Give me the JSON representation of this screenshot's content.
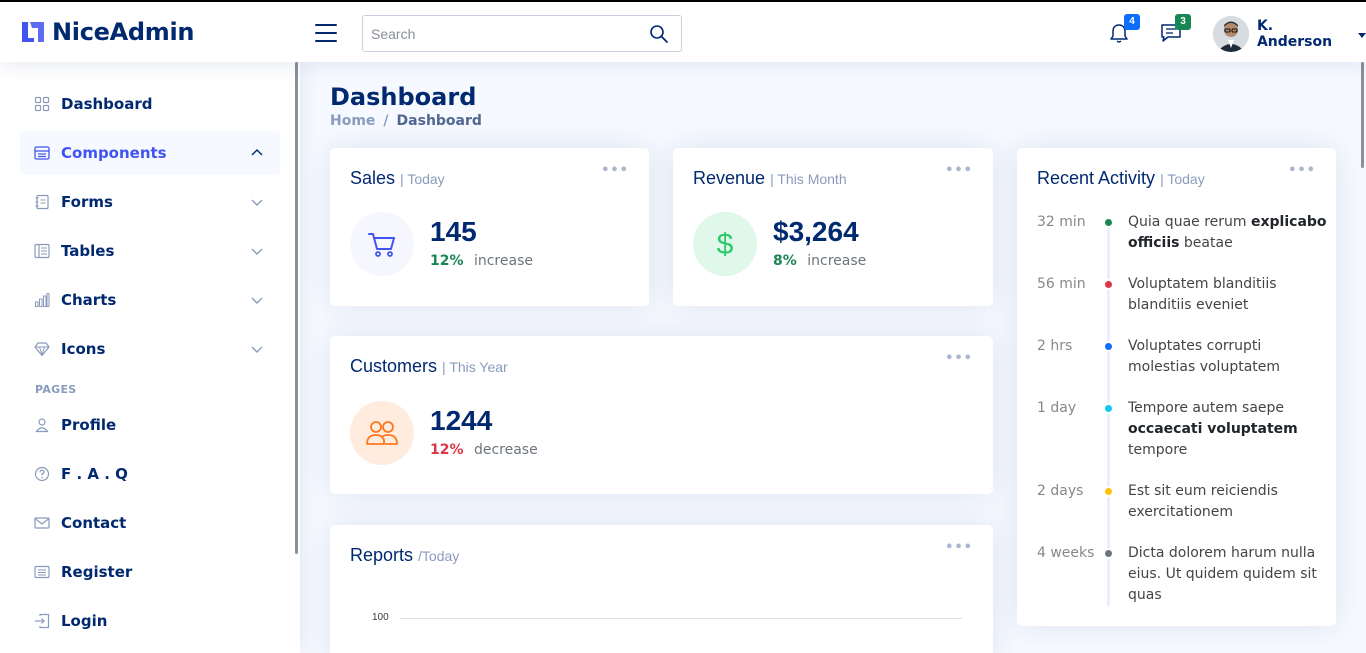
{
  "header": {
    "brand": "NiceAdmin",
    "search_placeholder": "Search",
    "notifications_count": "4",
    "messages_count": "3",
    "user_name": "K. Anderson"
  },
  "sidebar": {
    "items": [
      {
        "label": "Dashboard"
      },
      {
        "label": "Components"
      },
      {
        "label": "Forms"
      },
      {
        "label": "Tables"
      },
      {
        "label": "Charts"
      },
      {
        "label": "Icons"
      }
    ],
    "pages_heading": "PAGES",
    "pages": [
      {
        "label": "Profile"
      },
      {
        "label": "F . A . Q"
      },
      {
        "label": "Contact"
      },
      {
        "label": "Register"
      },
      {
        "label": "Login"
      }
    ]
  },
  "main": {
    "title": "Dashboard",
    "breadcrumb": {
      "home": "Home",
      "sep": "/",
      "current": "Dashboard"
    },
    "sales": {
      "title": "Sales",
      "period": "| Today",
      "value": "145",
      "pct": "12%",
      "word": "increase"
    },
    "revenue": {
      "title": "Revenue",
      "period": "| This Month",
      "value": "$3,264",
      "pct": "8%",
      "word": "increase"
    },
    "customers": {
      "title": "Customers",
      "period": "| This Year",
      "value": "1244",
      "pct": "12%",
      "word": "decrease"
    },
    "reports": {
      "title": "Reports",
      "period": "/Today",
      "tick": "100"
    },
    "activity": {
      "title": "Recent Activity",
      "period": "| Today",
      "items": [
        {
          "time": "32 min",
          "color": "#198754",
          "pre": "Quia quae rerum ",
          "bold": "explicabo officiis",
          "post": " beatae"
        },
        {
          "time": "56 min",
          "color": "#dc3545",
          "pre": "Voluptatem blanditiis blanditiis eveniet",
          "bold": "",
          "post": ""
        },
        {
          "time": "2 hrs",
          "color": "#0d6efd",
          "pre": "Voluptates corrupti molestias voluptatem",
          "bold": "",
          "post": ""
        },
        {
          "time": "1 day",
          "color": "#0dcaf0",
          "pre": "Tempore autem saepe ",
          "bold": "occaecati voluptatem",
          "post": " tempore"
        },
        {
          "time": "2 days",
          "color": "#ffc107",
          "pre": "Est sit eum reiciendis exercitationem",
          "bold": "",
          "post": ""
        },
        {
          "time": "4 weeks",
          "color": "#6c757d",
          "pre": "Dicta dolorem harum nulla eius. Ut quidem quidem sit quas",
          "bold": "",
          "post": ""
        }
      ]
    }
  },
  "colors": {
    "primary": "#4154f1",
    "navy": "#012970",
    "success": "#198754",
    "danger": "#dc3545"
  }
}
